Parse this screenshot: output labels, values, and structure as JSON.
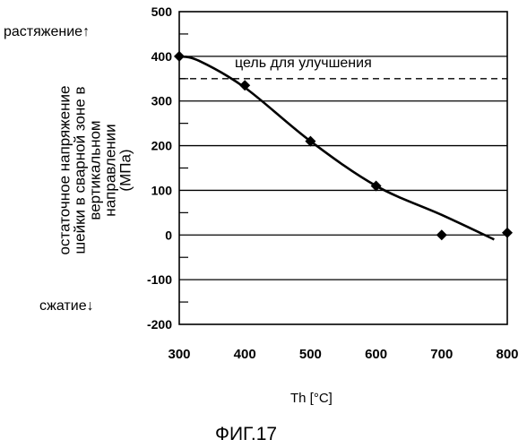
{
  "chart_data": {
    "type": "scatter",
    "title": "",
    "xlabel": "Th [°C]",
    "ylabel_lines": [
      "остаточное напряжение",
      "шейки в сварной зоне в",
      "вертикальном",
      "направлении",
      "(МПа)"
    ],
    "xlim": [
      300,
      800
    ],
    "ylim": [
      -200,
      500
    ],
    "x_ticks": [
      300,
      400,
      500,
      600,
      700,
      800
    ],
    "y_ticks": [
      500,
      400,
      300,
      200,
      100,
      0,
      -100,
      -200
    ],
    "grid": "horizontal",
    "series": [
      {
        "points": [
          {
            "x": 300,
            "y": 400
          },
          {
            "x": 400,
            "y": 335
          },
          {
            "x": 500,
            "y": 210
          },
          {
            "x": 600,
            "y": 110
          },
          {
            "x": 700,
            "y": 0
          },
          {
            "x": 800,
            "y": 5
          }
        ]
      }
    ],
    "trend_curve": [
      {
        "x": 300,
        "y": 400
      },
      {
        "x": 330,
        "y": 390
      },
      {
        "x": 400,
        "y": 330
      },
      {
        "x": 500,
        "y": 210
      },
      {
        "x": 600,
        "y": 110
      },
      {
        "x": 700,
        "y": 45
      },
      {
        "x": 780,
        "y": -10
      }
    ],
    "target_line": {
      "y": 350,
      "label": "цель для улучшения"
    },
    "annotations": {
      "tension": "растяжение↑",
      "compression": "сжатие↓"
    }
  },
  "figure_caption": "ФИГ.17"
}
